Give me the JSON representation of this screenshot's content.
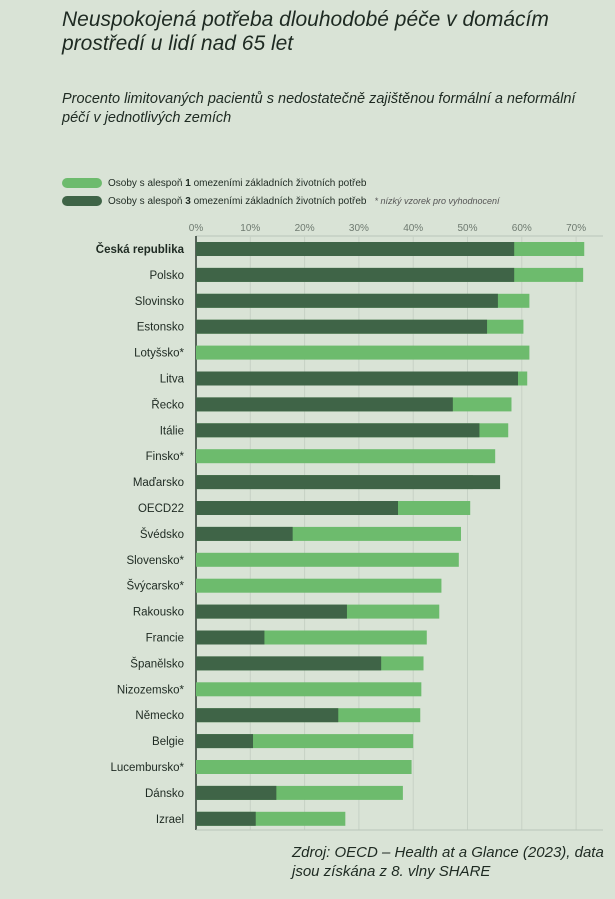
{
  "title": "Neuspokojená potřeba dlouhodobé péče v domácím prostředí u lidí nad 65 let",
  "subtitle": "Procento limitovaných pacientů s nedostatečně zajištěnou formální a neformální péčí v jednotlivých zemích",
  "legend": {
    "item1_prefix": "Osoby s alespoň ",
    "item1_num": "1",
    "item1_suffix": " omezeními základních životních potřeb",
    "item2_prefix": "Osoby s alespoň ",
    "item2_num": "3",
    "item2_suffix": " omezeními základních životních potřeb",
    "note": "* nízký vzorek pro vyhodnocení"
  },
  "colors": {
    "light": "#6dbb6d",
    "dark": "#3f6447",
    "bg": "#d9e3d6"
  },
  "source": "Zdroj: OECD – Health at a Glance (2023), data jsou získána z 8. vlny SHARE",
  "chart_data": {
    "type": "bar",
    "orientation": "horizontal",
    "title": "Neuspokojená potřeba dlouhodobé péče v domácím prostředí u lidí nad 65 let",
    "xlim": [
      0,
      70
    ],
    "ticks": [
      "0%",
      "10%",
      "20%",
      "30%",
      "40%",
      "50%",
      "60%",
      "70%"
    ],
    "highlight": "Česká republika",
    "categories": [
      "Česká republika",
      "Polsko",
      "Slovinsko",
      "Estonsko",
      "Lotyšsko*",
      "Litva",
      "Řecko",
      "Itálie",
      "Finsko*",
      "Maďarsko",
      "OECD22",
      "Švédsko",
      "Slovensko*",
      "Švýcarsko*",
      "Rakousko",
      "Francie",
      "Španělsko",
      "Nizozemsko*",
      "Německo",
      "Belgie",
      "Lucembursko*",
      "Dánsko",
      "Izrael"
    ],
    "series": [
      {
        "name": "Osoby s alespoň 1 omezeními základních životních potřeb",
        "values": [
          71.5,
          71.3,
          61.4,
          60.3,
          61.4,
          61.0,
          58.1,
          57.5,
          55.1,
          51.0,
          50.5,
          48.8,
          48.4,
          45.2,
          44.8,
          42.5,
          41.9,
          41.5,
          41.3,
          40.0,
          39.7,
          38.1,
          27.5
        ]
      },
      {
        "name": "Osoby s alespoň 3 omezeními základních životních potřeb",
        "values": [
          58.6,
          58.6,
          55.6,
          53.6,
          null,
          59.3,
          47.3,
          52.2,
          null,
          56.0,
          37.2,
          17.8,
          null,
          null,
          27.8,
          12.6,
          34.1,
          null,
          26.2,
          10.5,
          null,
          14.8,
          11.0
        ]
      }
    ]
  }
}
